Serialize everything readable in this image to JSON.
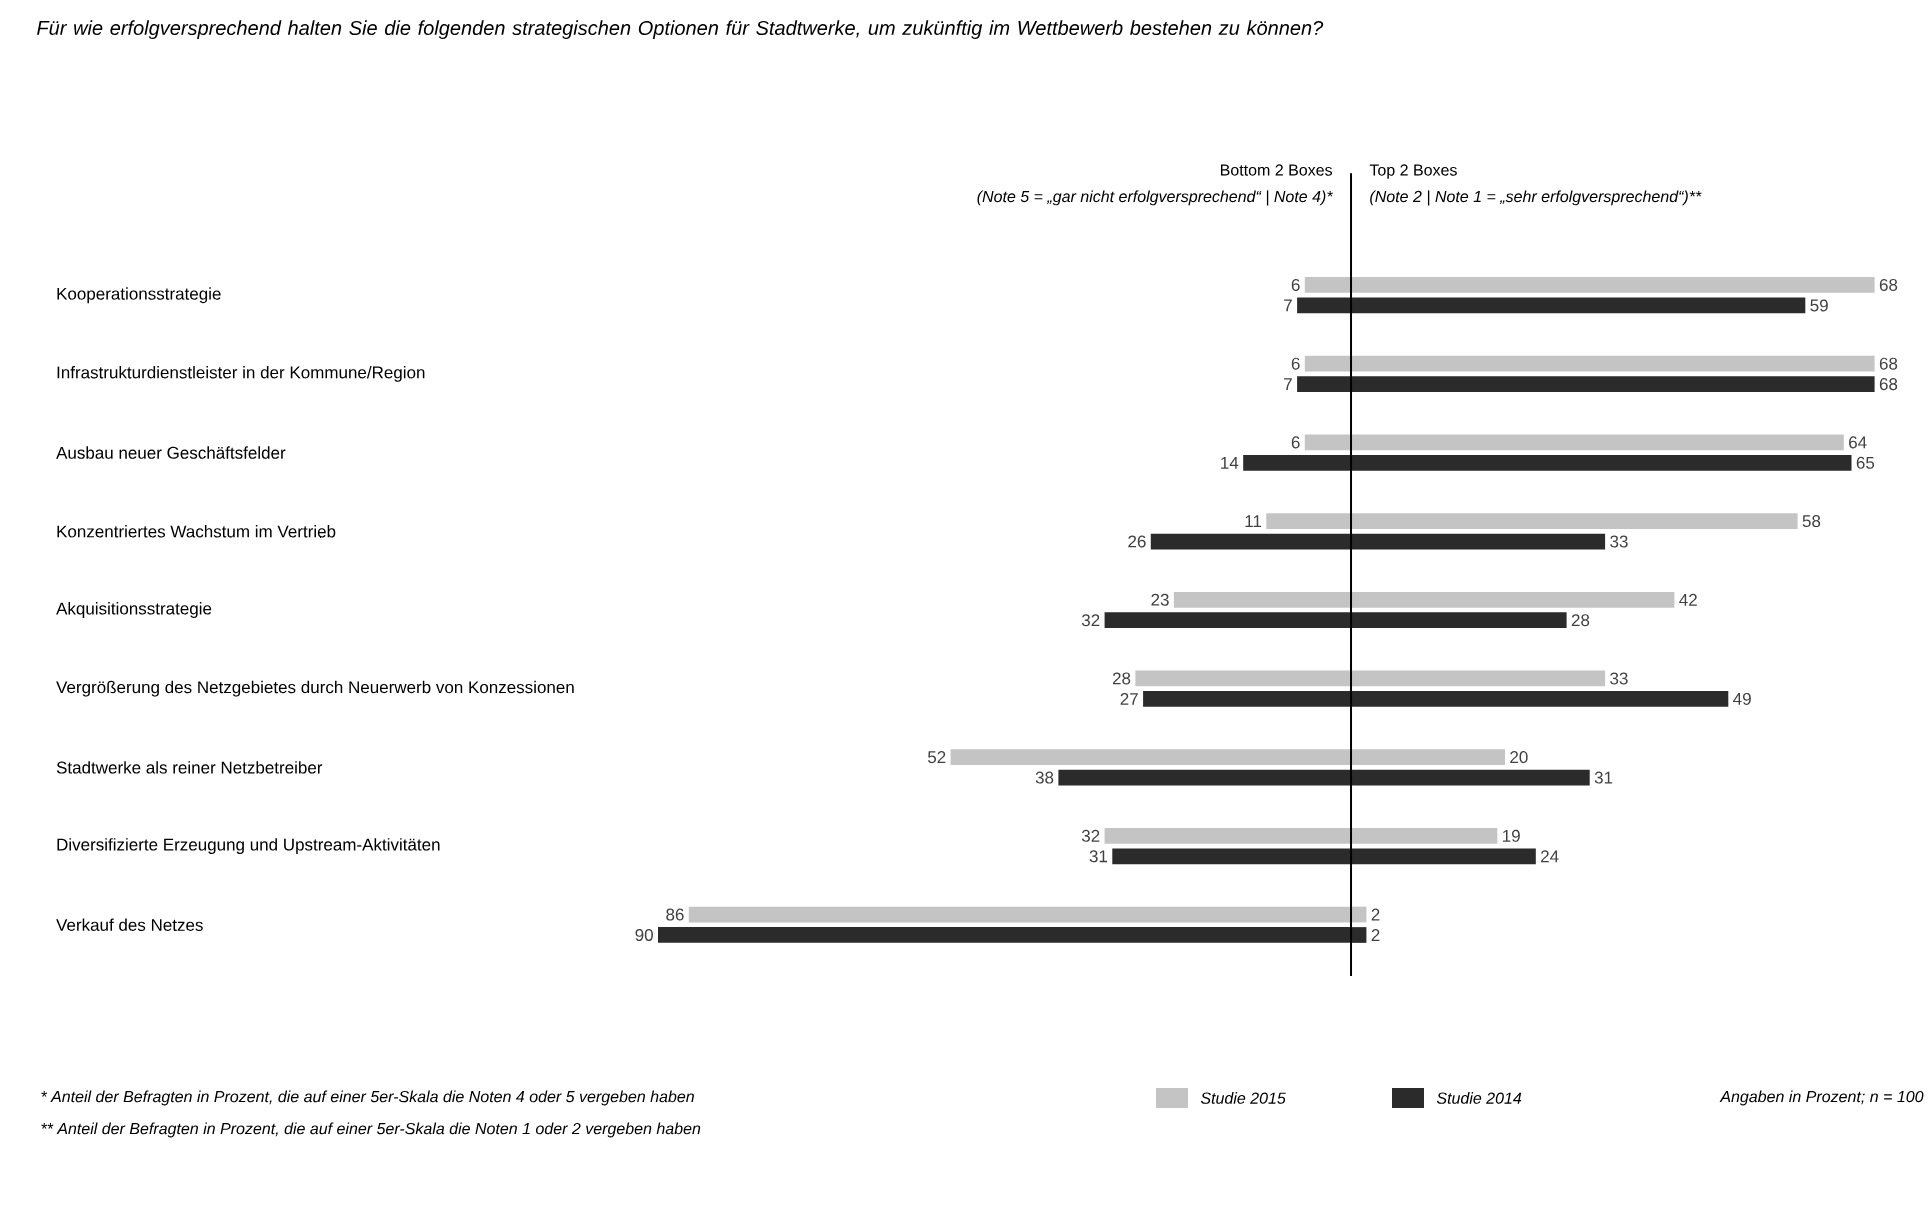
{
  "chart_data": [
    {
      "type": "bar",
      "orientation": "horizontal",
      "title": "Für wie erfolgversprechend halten Sie die folgenden strategischen Optionen für Stadtwerke, um zukünftig im Wettbewerb bestehen zu können?",
      "categories": [
        "Kooperationsstrategie",
        "Infrastrukturdienstleister in der Kommune/Region",
        "Ausbau neuer Geschäftsfelder",
        "Konzentriertes Wachstum im Vertrieb",
        "Akquisitionsstrategie",
        "Vergrößerung des Netzgebietes durch Neuerwerb von Konzessionen",
        "Stadtwerke als reiner Netzbetreiber",
        "Diversifizierte Erzeugung und Upstream-Aktivitäten",
        "Verkauf des Netzes"
      ],
      "series": [
        {
          "color": "#c4c4c4",
          "values": [
            6,
            6,
            6,
            11,
            23,
            28,
            52,
            32,
            86
          ]
        },
        {
          "color": "#2b2b2b",
          "values": [
            7,
            7,
            14,
            26,
            32,
            27,
            38,
            31,
            90
          ]
        }
      ],
      "xlim": [
        90,
        0
      ],
      "tick_labels": "y",
      "data_labels": true,
      "annotations": [
        "Bottom 2 Boxes",
        "(Note 5 = „gar nicht erfolgversprechend“ | Note 4)*",
        "* Anteil der Befragten in Prozent, die auf einer 5er-Skala die Noten 4 oder 5 vergeben haben",
        "** Anteil der Befragten in Prozent, die auf einer 5er-Skala die Noten 1 oder 2 vergeben haben"
      ]
    },
    {
      "type": "bar",
      "orientation": "horizontal",
      "categories": [
        null,
        null,
        null,
        null,
        null,
        null,
        null,
        null,
        null
      ],
      "series": [
        {
          "name": "Studie 2015",
          "color": "#c4c4c4",
          "values": [
            68,
            68,
            64,
            58,
            42,
            33,
            20,
            19,
            2
          ]
        },
        {
          "name": "Studie 2014",
          "color": "#2b2b2b",
          "values": [
            59,
            68,
            65,
            33,
            28,
            49,
            31,
            24,
            2
          ]
        }
      ],
      "xlim": [
        0,
        68
      ],
      "tick_labels": false,
      "data_labels": true,
      "ref_lines": [
        {
          "axis": "x",
          "value": 0,
          "color": "#000000"
        }
      ],
      "legend": "bottom",
      "annotations": [
        "Top 2 Boxes",
        "(Note 2 | Note 1 = „sehr erfolgversprechend“)**",
        "Angaben in Prozent; n = 100"
      ]
    }
  ]
}
